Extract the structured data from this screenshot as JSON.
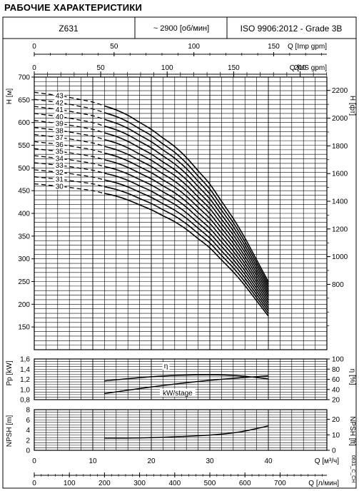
{
  "title": "РАБОЧИЕ ХАРАКТЕРИСТИКИ",
  "header": {
    "model": "Z631",
    "speed": "~ 2900 [об/мин]",
    "standard": "ISO 9906:2012 - Grade 3B"
  },
  "axes": {
    "q_imp_label": "Q [Imp gpm]",
    "q_us_label": "Q [US gpm]",
    "q_m3h_label": "Q [м³/ч]",
    "q_lmin_label": "Q [л/мин]",
    "h_m_label": "H [м]",
    "h_ft_label": "H [фт]",
    "pp_label": "Pp [kW]",
    "eta_label": "η [%]",
    "npsh_m_label": "NPSH [m]",
    "npsh_ft_label": "NPSH [ft]",
    "code": "0631_C_CH"
  },
  "chart_data": {
    "type": "line",
    "x_unit": "Q [м³/ч]",
    "xlim": [
      0,
      50
    ],
    "head": {
      "ylabel": "H [м]",
      "ylim": [
        100,
        700
      ],
      "y2label": "H [фт]",
      "stages": [
        30,
        31,
        32,
        33,
        34,
        35,
        36,
        37,
        38,
        39,
        40,
        41,
        42,
        43
      ],
      "q": [
        0,
        5,
        10,
        15,
        20,
        25,
        30,
        35,
        40
      ],
      "h_per_stage": [
        15.5,
        15.3,
        15.0,
        14.5,
        13.6,
        12.5,
        10.8,
        8.6,
        5.8
      ],
      "operating_range": [
        12,
        40
      ],
      "labels": [
        "30",
        "31",
        "32",
        "33",
        "34",
        "35",
        "36",
        "37",
        "38",
        "39",
        "40",
        "41",
        "42",
        "43"
      ]
    },
    "power": {
      "ylabel": "Pp [kW]",
      "ylim": [
        0.8,
        1.6
      ],
      "label": "kW/stage",
      "q": [
        12,
        20,
        30,
        40
      ],
      "values": [
        0.92,
        1.05,
        1.18,
        1.27
      ]
    },
    "efficiency": {
      "ylabel": "η [%]",
      "ylim": [
        20,
        100
      ],
      "label": "η",
      "q": [
        12,
        20,
        25,
        30,
        35,
        40
      ],
      "values": [
        57,
        65,
        68,
        69,
        67,
        61
      ]
    },
    "npsh": {
      "ylabel": "NPSH [m]",
      "ylim": [
        0,
        8
      ],
      "y2label": "NPSH [ft]",
      "q": [
        12,
        20,
        30,
        35,
        40
      ],
      "values": [
        2.4,
        2.5,
        3.0,
        3.6,
        4.8
      ]
    },
    "ticks": {
      "q_m3h": [
        "0",
        "10",
        "20",
        "30",
        "40"
      ],
      "q_imp": [
        "0",
        "50",
        "100",
        "150"
      ],
      "q_us": [
        "0",
        "50",
        "100",
        "150",
        "200"
      ],
      "q_lmin": [
        "0",
        "100",
        "200",
        "300",
        "400",
        "500",
        "600",
        "700"
      ],
      "h_m": [
        "150",
        "200",
        "250",
        "300",
        "350",
        "400",
        "450",
        "500",
        "550",
        "600",
        "650",
        "700"
      ],
      "h_ft": [
        "800",
        "1000",
        "1200",
        "1400",
        "1600",
        "1800",
        "2000",
        "2200"
      ],
      "pp": [
        "0,8",
        "1,0",
        "1,2",
        "1,4",
        "1,6"
      ],
      "eta": [
        "20",
        "40",
        "60",
        "80",
        "100"
      ],
      "npsh_m": [
        "0",
        "2",
        "4",
        "6",
        "8"
      ],
      "npsh_ft": [
        "0",
        "10",
        "20"
      ]
    }
  }
}
